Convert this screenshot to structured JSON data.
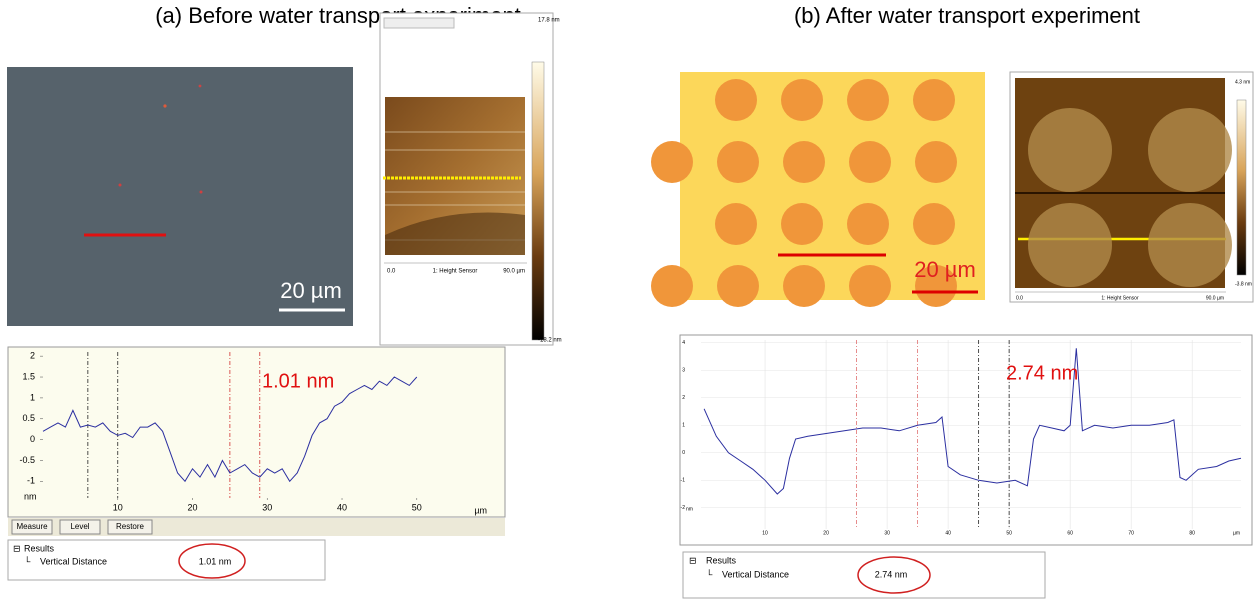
{
  "panel_a": {
    "title": "(a) Before water transport experiment",
    "scale_bar": "20 µm",
    "afm": {
      "colorbar_max": "17.8 nm",
      "colorbar_min": "-18.2 nm",
      "axis_start": "0.0",
      "channel": "1: Height Sensor",
      "axis_end": "90.0 µm"
    },
    "buttons": [
      "Measure",
      "Level",
      "Restore"
    ],
    "results": {
      "heading": "Results",
      "item": "Vertical Distance",
      "value": "1.01 nm"
    }
  },
  "panel_b": {
    "title": "(b) After water transport experiment",
    "scale_bar": "20 µm",
    "afm": {
      "colorbar_max": "4.3 nm",
      "colorbar_min": "-3.8 nm",
      "axis_start": "0.0",
      "channel": "1: Height Sensor",
      "axis_end": "90.0 µm"
    },
    "results": {
      "heading": "Results",
      "item": "Vertical Distance",
      "value": "2.74 nm"
    }
  },
  "chart_data": [
    {
      "type": "line",
      "annotation": "1.01 nm",
      "y_label": "nm",
      "x_label": "µm",
      "x": [
        0,
        1,
        2,
        3,
        4,
        5,
        6,
        7,
        8,
        9,
        10,
        11,
        12,
        13,
        14,
        15,
        16,
        17,
        18,
        19,
        20,
        21,
        22,
        23,
        24,
        25,
        26,
        27,
        28,
        29,
        30,
        31,
        32,
        33,
        34,
        35,
        36,
        37,
        38,
        39,
        40,
        41,
        42,
        43,
        44,
        45,
        46,
        47,
        48,
        49,
        50
      ],
      "series": [
        {
          "color": "#2b2fa0",
          "values": [
            0.2,
            0.3,
            0.4,
            0.3,
            0.7,
            0.3,
            0.35,
            0.3,
            0.4,
            0.2,
            0.1,
            0.15,
            0.05,
            0.3,
            0.3,
            0.4,
            0.2,
            -0.3,
            -0.8,
            -1.0,
            -0.7,
            -0.9,
            -0.6,
            -0.9,
            -0.5,
            -0.8,
            -0.7,
            -0.6,
            -0.8,
            -0.9,
            -0.7,
            -0.8,
            -0.7,
            -1.0,
            -0.8,
            -0.4,
            0.1,
            0.4,
            0.5,
            0.8,
            0.9,
            1.1,
            1.2,
            1.3,
            1.2,
            1.4,
            1.3,
            1.5,
            1.4,
            1.3,
            1.5
          ]
        }
      ],
      "cursors": [
        6,
        10,
        25,
        29
      ],
      "xlim": [
        0,
        61
      ],
      "ylim": [
        -1.4,
        2.1
      ],
      "xticks": [
        10,
        20,
        30,
        40,
        50
      ],
      "yticks": [
        2,
        1.5,
        1,
        0.5,
        0,
        -0.5,
        -1
      ],
      "grid": false
    },
    {
      "type": "line",
      "annotation": "2.74 nm",
      "y_label": "nm",
      "x_label": "µm",
      "x": [
        0,
        2,
        4,
        6,
        8,
        10,
        12,
        13,
        14,
        15,
        17,
        20,
        23,
        26,
        29,
        32,
        35,
        38,
        39,
        40,
        42,
        45,
        48,
        51,
        53,
        54,
        55,
        57,
        59,
        60,
        61,
        62,
        64,
        67,
        70,
        73,
        76,
        77,
        78,
        79,
        81,
        84,
        86,
        88
      ],
      "series": [
        {
          "color": "#2b2fa0",
          "values": [
            1.6,
            0.6,
            0,
            -0.3,
            -0.6,
            -1.0,
            -1.5,
            -1.3,
            -0.2,
            0.5,
            0.6,
            0.7,
            0.8,
            0.9,
            0.9,
            0.8,
            1.0,
            1.1,
            1.3,
            -0.5,
            -0.8,
            -1.0,
            -1.1,
            -1.0,
            -1.2,
            0.5,
            1.0,
            0.9,
            0.8,
            1.0,
            3.8,
            0.8,
            1.0,
            0.9,
            1.0,
            1.0,
            1.1,
            1.2,
            -0.9,
            -1.0,
            -0.6,
            -0.5,
            -0.3,
            -0.2
          ]
        }
      ],
      "cursors": [
        25,
        35,
        45,
        50
      ],
      "xlim": [
        -0.5,
        88
      ],
      "ylim": [
        -2.7,
        4.1
      ],
      "xticks": [
        10,
        20,
        30,
        40,
        50,
        60,
        70,
        80
      ],
      "yticks": [
        4,
        3,
        2,
        1,
        0,
        -1,
        -2
      ],
      "grid": true
    }
  ]
}
